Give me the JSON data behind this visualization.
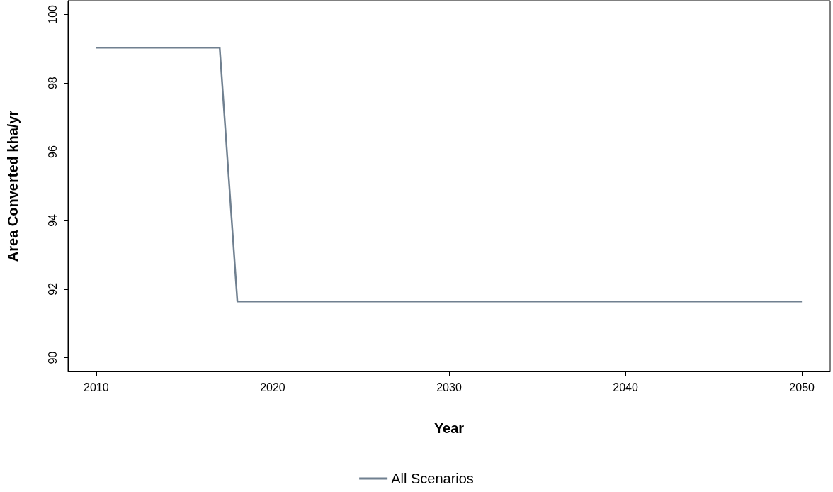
{
  "chart_data": {
    "type": "line",
    "xlabel": "Year",
    "ylabel": "Area Converted kha/yr",
    "x": [
      2010,
      2017,
      2018,
      2050
    ],
    "series": [
      {
        "name": "All Scenarios",
        "color": "#708090",
        "values": [
          99.03,
          99.03,
          91.64,
          91.64
        ]
      }
    ],
    "xlim": [
      2008.4,
      2051.6
    ],
    "xticks": [
      2010,
      2020,
      2030,
      2040,
      2050
    ],
    "ylim": [
      89.6,
      100.4
    ],
    "yticks": [
      90,
      92,
      94,
      96,
      98,
      100
    ],
    "grid": false,
    "legend": "bottom",
    "marker": "none",
    "line_style": "solid"
  }
}
